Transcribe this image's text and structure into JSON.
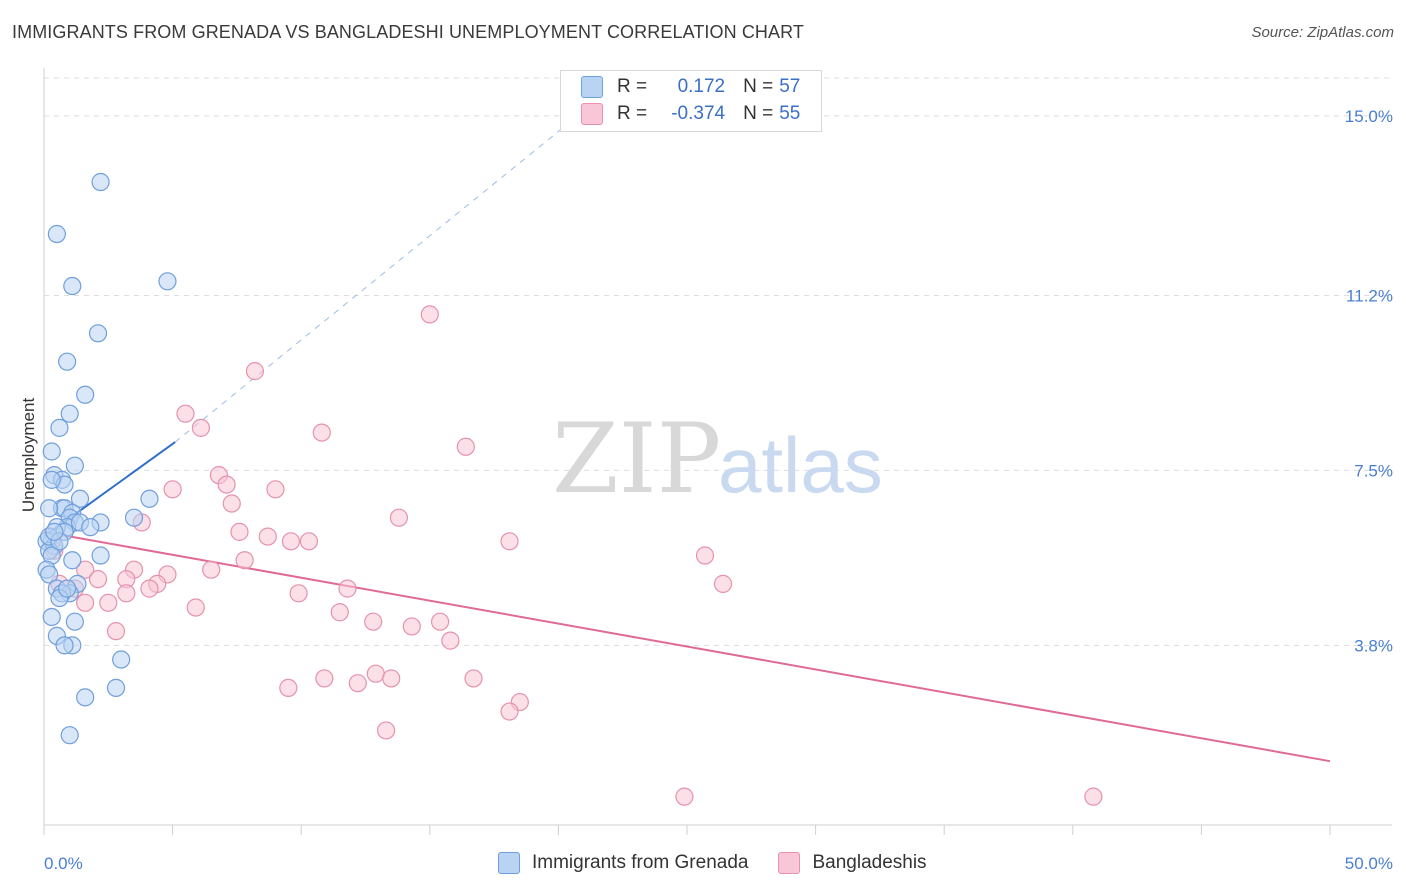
{
  "title": "IMMIGRANTS FROM GRENADA VS BANGLADESHI UNEMPLOYMENT CORRELATION CHART",
  "source": "Source: ZipAtlas.com",
  "watermark": {
    "zip": "ZIP",
    "atlas": "atlas"
  },
  "colors": {
    "blue_fill": "#b9d3f3",
    "blue_stroke": "#6f9fdc",
    "blue_line": "#2f6fce",
    "pink_fill": "#f8c6d6",
    "pink_stroke": "#e592ad",
    "pink_line": "#e06a96",
    "tick_text": "#4a7fd0",
    "grid": "#dddddd"
  },
  "legend": {
    "rows": [
      {
        "r_label": "R =",
        "r_value": "0.172",
        "n_label": "N =",
        "n_value": "57",
        "color": "#b9d3f3"
      },
      {
        "r_label": "R =",
        "r_value": "-0.374",
        "n_label": "N =",
        "n_value": "55",
        "color": "#f8c6d6"
      }
    ]
  },
  "bottom_legend": [
    {
      "label": "Immigrants from Grenada",
      "color": "#b9d3f3"
    },
    {
      "label": "Bangladeshis",
      "color": "#f8c6d6"
    }
  ],
  "chart_data": {
    "type": "scatter",
    "title": "IMMIGRANTS FROM GRENADA VS BANGLADESHI UNEMPLOYMENT CORRELATION CHART",
    "xlabel": "",
    "ylabel": "Unemployment",
    "xlim": [
      0,
      50
    ],
    "ylim": [
      0,
      15.8
    ],
    "x_tick_labels": [
      "0.0%",
      "50.0%"
    ],
    "y_ticks": [
      3.8,
      7.5,
      11.2,
      15.0
    ],
    "y_tick_labels": [
      "3.8%",
      "7.5%",
      "11.2%",
      "15.0%"
    ],
    "grid": "horizontal dashed",
    "legend_position": "top-center",
    "series": [
      {
        "name": "Immigrants from Grenada",
        "points": [
          [
            2.2,
            13.6
          ],
          [
            0.5,
            12.5
          ],
          [
            1.1,
            11.4
          ],
          [
            4.8,
            11.5
          ],
          [
            2.1,
            10.4
          ],
          [
            0.9,
            9.8
          ],
          [
            1.6,
            9.1
          ],
          [
            1.0,
            8.7
          ],
          [
            0.6,
            8.4
          ],
          [
            0.3,
            7.9
          ],
          [
            1.2,
            7.6
          ],
          [
            0.4,
            7.4
          ],
          [
            0.7,
            7.3
          ],
          [
            0.8,
            7.2
          ],
          [
            0.3,
            7.3
          ],
          [
            4.1,
            6.9
          ],
          [
            1.4,
            6.9
          ],
          [
            0.7,
            6.7
          ],
          [
            0.8,
            6.7
          ],
          [
            1.1,
            6.6
          ],
          [
            0.2,
            6.7
          ],
          [
            1.0,
            6.5
          ],
          [
            3.5,
            6.5
          ],
          [
            2.2,
            6.4
          ],
          [
            1.2,
            6.4
          ],
          [
            0.9,
            6.3
          ],
          [
            0.5,
            6.3
          ],
          [
            0.8,
            6.2
          ],
          [
            0.3,
            6.0
          ],
          [
            0.1,
            6.0
          ],
          [
            0.4,
            5.9
          ],
          [
            0.2,
            5.8
          ],
          [
            0.3,
            5.7
          ],
          [
            2.2,
            5.7
          ],
          [
            1.1,
            5.6
          ],
          [
            0.1,
            5.4
          ],
          [
            0.2,
            5.3
          ],
          [
            1.3,
            5.1
          ],
          [
            0.5,
            5.0
          ],
          [
            1.0,
            4.9
          ],
          [
            0.7,
            4.9
          ],
          [
            0.6,
            4.8
          ],
          [
            0.3,
            4.4
          ],
          [
            1.2,
            4.3
          ],
          [
            0.5,
            4.0
          ],
          [
            1.1,
            3.8
          ],
          [
            0.8,
            3.8
          ],
          [
            3.0,
            3.5
          ],
          [
            2.8,
            2.9
          ],
          [
            1.6,
            2.7
          ],
          [
            1.0,
            1.9
          ],
          [
            0.2,
            6.1
          ],
          [
            0.6,
            6.0
          ],
          [
            1.4,
            6.4
          ],
          [
            0.9,
            5.0
          ],
          [
            0.4,
            6.2
          ],
          [
            1.8,
            6.3
          ]
        ],
        "trend": {
          "x": [
            0,
            5.1
          ],
          "y": [
            6.1,
            8.1
          ],
          "dashed_extension": {
            "x": [
              5.1,
              20.3
            ],
            "y": [
              8.1,
              14.8
            ]
          }
        }
      },
      {
        "name": "Bangladeshis",
        "points": [
          [
            15.0,
            10.8
          ],
          [
            8.2,
            9.6
          ],
          [
            5.5,
            8.7
          ],
          [
            6.1,
            8.4
          ],
          [
            10.8,
            8.3
          ],
          [
            16.4,
            8.0
          ],
          [
            6.8,
            7.4
          ],
          [
            7.1,
            7.2
          ],
          [
            9.0,
            7.1
          ],
          [
            5.0,
            7.1
          ],
          [
            7.3,
            6.8
          ],
          [
            13.8,
            6.5
          ],
          [
            3.8,
            6.4
          ],
          [
            7.6,
            6.2
          ],
          [
            8.7,
            6.1
          ],
          [
            9.6,
            6.0
          ],
          [
            10.3,
            6.0
          ],
          [
            18.1,
            6.0
          ],
          [
            25.7,
            5.7
          ],
          [
            7.8,
            5.6
          ],
          [
            6.5,
            5.4
          ],
          [
            3.5,
            5.4
          ],
          [
            4.8,
            5.3
          ],
          [
            1.6,
            5.4
          ],
          [
            2.1,
            5.2
          ],
          [
            3.2,
            5.2
          ],
          [
            4.4,
            5.1
          ],
          [
            4.1,
            5.0
          ],
          [
            11.8,
            5.0
          ],
          [
            1.2,
            5.0
          ],
          [
            26.4,
            5.1
          ],
          [
            3.2,
            4.9
          ],
          [
            9.9,
            4.9
          ],
          [
            2.5,
            4.7
          ],
          [
            1.6,
            4.7
          ],
          [
            5.9,
            4.6
          ],
          [
            11.5,
            4.5
          ],
          [
            12.8,
            4.3
          ],
          [
            14.3,
            4.2
          ],
          [
            15.4,
            4.3
          ],
          [
            2.8,
            4.1
          ],
          [
            15.8,
            3.9
          ],
          [
            0.4,
            5.8
          ],
          [
            0.6,
            5.1
          ],
          [
            12.9,
            3.2
          ],
          [
            13.5,
            3.1
          ],
          [
            10.9,
            3.1
          ],
          [
            12.2,
            3.0
          ],
          [
            16.7,
            3.1
          ],
          [
            9.5,
            2.9
          ],
          [
            18.5,
            2.6
          ],
          [
            18.1,
            2.4
          ],
          [
            13.3,
            2.0
          ],
          [
            24.9,
            0.6
          ],
          [
            40.8,
            0.6
          ]
        ],
        "trend": {
          "x": [
            0,
            50
          ],
          "y": [
            6.2,
            1.35
          ]
        }
      }
    ]
  }
}
